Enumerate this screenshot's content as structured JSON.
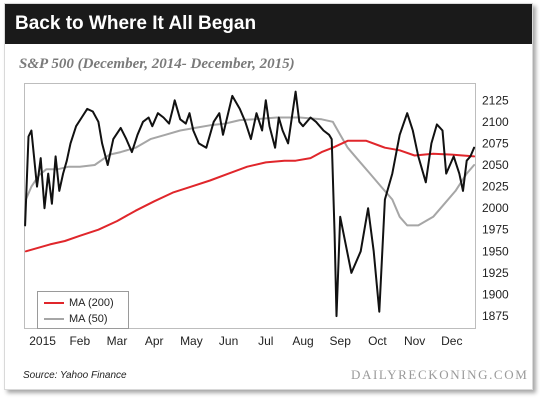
{
  "header": {
    "title": "Back to Where It All Began"
  },
  "subtitle": "S&P 500 (December, 2014- December, 2015)",
  "source": "Source: Yahoo Finance",
  "watermark": "DAILYRECKONING.COM",
  "colors": {
    "price": "#111111",
    "ma200": "#e0262b",
    "ma50": "#a6a6a6",
    "header_bg": "#1a1a1a"
  },
  "chart_data": {
    "type": "line",
    "title": "S&P 500 (December, 2014- December, 2015)",
    "xlabel": "",
    "ylabel": "",
    "x_domain": [
      -0.5,
      11.65
    ],
    "x_tick_labels": [
      "2015",
      "Feb",
      "Mar",
      "Apr",
      "May",
      "Jun",
      "Jul",
      "Aug",
      "Sep",
      "Oct",
      "Nov",
      "Dec"
    ],
    "ylim": [
      1860,
      2145
    ],
    "y_ticks": [
      1875,
      1900,
      1925,
      1950,
      1975,
      2000,
      2025,
      2050,
      2075,
      2100,
      2125
    ],
    "legend": {
      "position": "bottom-left",
      "entries": [
        "MA (200)",
        "MA (50)"
      ]
    },
    "series": [
      {
        "key": "price",
        "x": [
          -0.47,
          -0.38,
          -0.3,
          -0.23,
          -0.15,
          -0.05,
          0.05,
          0.15,
          0.25,
          0.35,
          0.45,
          0.55,
          0.65,
          0.75,
          0.9,
          1.05,
          1.2,
          1.35,
          1.5,
          1.6,
          1.75,
          1.9,
          2.1,
          2.25,
          2.4,
          2.55,
          2.7,
          2.85,
          2.95,
          3.1,
          3.25,
          3.4,
          3.5,
          3.55,
          3.7,
          3.85,
          3.95,
          4.05,
          4.2,
          4.4,
          4.6,
          4.75,
          4.85,
          5.1,
          5.3,
          5.45,
          5.6,
          5.75,
          5.9,
          6.0,
          6.1,
          6.25,
          6.35,
          6.45,
          6.6,
          6.8,
          6.9,
          7.0,
          7.2,
          7.35,
          7.55,
          7.7,
          7.77,
          7.85,
          7.9,
          8.0,
          8.3,
          8.55,
          8.75,
          8.9,
          9.05,
          9.2,
          9.4,
          9.6,
          9.8,
          9.95,
          10.1,
          10.3,
          10.45,
          10.6,
          10.75,
          10.85,
          11.05,
          11.2,
          11.3,
          11.4,
          11.5,
          11.6
        ],
        "values": [
          1980,
          2083,
          2090,
          2060,
          2025,
          2058,
          2000,
          2040,
          2005,
          2060,
          2020,
          2040,
          2055,
          2075,
          2095,
          2105,
          2115,
          2112,
          2100,
          2075,
          2050,
          2080,
          2093,
          2080,
          2065,
          2085,
          2100,
          2105,
          2095,
          2110,
          2105,
          2098,
          2115,
          2125,
          2103,
          2098,
          2110,
          2090,
          2075,
          2070,
          2100,
          2110,
          2085,
          2130,
          2115,
          2100,
          2080,
          2110,
          2090,
          2125,
          2095,
          2070,
          2105,
          2090,
          2075,
          2135,
          2100,
          2095,
          2105,
          2100,
          2090,
          2085,
          2080,
          1970,
          1875,
          1990,
          1925,
          1950,
          2000,
          1950,
          1880,
          2010,
          2040,
          2085,
          2110,
          2090,
          2060,
          2030,
          2075,
          2097,
          2090,
          2040,
          2060,
          2040,
          2020,
          2055,
          2060,
          2070
        ]
      },
      {
        "key": "ma200",
        "name": "MA (200)",
        "x": [
          -0.45,
          0.2,
          0.6,
          1.0,
          1.5,
          2.0,
          2.5,
          3.0,
          3.5,
          4.0,
          4.5,
          5.0,
          5.5,
          6.0,
          6.5,
          6.8,
          7.2,
          7.5,
          7.8,
          8.2,
          8.7,
          9.2,
          9.6,
          10.0,
          10.5,
          11.0,
          11.6
        ],
        "values": [
          1950,
          1958,
          1962,
          1968,
          1975,
          1985,
          1997,
          2008,
          2018,
          2025,
          2032,
          2040,
          2048,
          2053,
          2055,
          2055,
          2058,
          2065,
          2070,
          2078,
          2078,
          2070,
          2067,
          2061,
          2063,
          2062,
          2060
        ]
      },
      {
        "key": "ma50",
        "name": "MA (50)",
        "x": [
          -0.45,
          -0.3,
          -0.1,
          0.1,
          0.4,
          0.7,
          1.0,
          1.4,
          1.8,
          2.1,
          2.5,
          2.9,
          3.3,
          3.7,
          4.1,
          4.5,
          4.9,
          5.3,
          5.7,
          6.0,
          6.3,
          6.6,
          6.9,
          7.2,
          7.5,
          7.8,
          8.0,
          8.2,
          8.5,
          8.8,
          9.1,
          9.4,
          9.6,
          9.8,
          10.1,
          10.5,
          10.8,
          11.1,
          11.4,
          11.6
        ],
        "values": [
          2010,
          2025,
          2038,
          2045,
          2045,
          2048,
          2048,
          2050,
          2062,
          2065,
          2070,
          2080,
          2085,
          2090,
          2093,
          2096,
          2098,
          2102,
          2103,
          2104,
          2105,
          2105,
          2105,
          2104,
          2103,
          2100,
          2085,
          2070,
          2055,
          2040,
          2025,
          2010,
          1990,
          1980,
          1980,
          1990,
          2005,
          2020,
          2040,
          2050
        ]
      }
    ]
  }
}
